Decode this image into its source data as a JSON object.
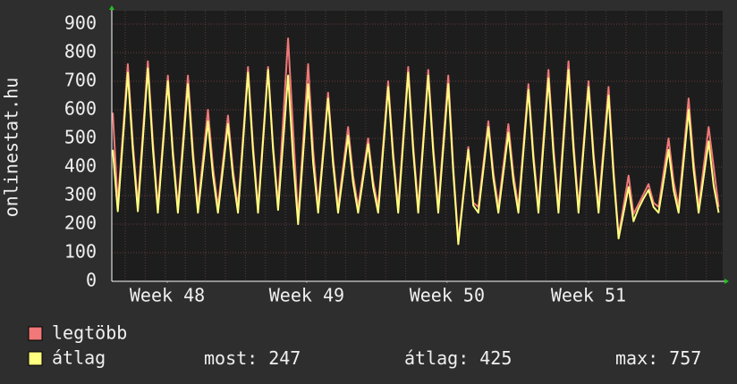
{
  "chart_data": {
    "type": "line",
    "ylabel": "onlinestat.hu",
    "xlim": [
      0,
      30.5
    ],
    "xticks": [
      {
        "value": 2.77,
        "label": "Week 48"
      },
      {
        "value": 9.73,
        "label": "Week 49"
      },
      {
        "value": 16.74,
        "label": "Week 50"
      },
      {
        "value": 23.8,
        "label": "Week 51"
      }
    ],
    "ylim": [
      0,
      900
    ],
    "yticks": [
      0,
      100,
      200,
      300,
      400,
      500,
      600,
      700,
      800,
      900
    ],
    "grid": true,
    "x": [
      0.05,
      0.3,
      0.55,
      0.8,
      1.05,
      1.3,
      1.55,
      1.8,
      2.05,
      2.3,
      2.55,
      2.8,
      3.05,
      3.3,
      3.55,
      3.8,
      4.05,
      4.3,
      4.55,
      4.8,
      5.05,
      5.3,
      5.55,
      5.8,
      6.05,
      6.3,
      6.55,
      6.8,
      7.05,
      7.3,
      7.55,
      7.8,
      8.05,
      8.3,
      8.55,
      8.8,
      9.05,
      9.3,
      9.55,
      9.8,
      10.05,
      10.3,
      10.55,
      10.8,
      11.05,
      11.3,
      11.55,
      11.8,
      12.05,
      12.3,
      12.55,
      12.8,
      13.05,
      13.3,
      13.55,
      13.8,
      14.05,
      14.3,
      14.55,
      14.8,
      15.05,
      15.3,
      15.55,
      15.8,
      16.05,
      16.3,
      16.55,
      16.8,
      17.05,
      17.3,
      17.55,
      17.8,
      18.05,
      18.3,
      18.55,
      18.8,
      19.05,
      19.3,
      19.55,
      19.8,
      20.05,
      20.3,
      20.55,
      20.8,
      21.05,
      21.3,
      21.55,
      21.8,
      22.05,
      22.3,
      22.55,
      22.8,
      23.05,
      23.3,
      23.55,
      23.8,
      24.05,
      24.3,
      24.55,
      24.8,
      25.05,
      25.3,
      25.55,
      25.8,
      26.05,
      26.3,
      26.55,
      26.8,
      27.05,
      27.3,
      27.55,
      27.8,
      28.05,
      28.3,
      28.55,
      28.8,
      29.05,
      29.3,
      29.55,
      29.8,
      30.05,
      30.3
    ],
    "series": [
      {
        "name": "legtöbb",
        "color": "#f07878",
        "values": [
          590,
          270,
          515,
          760,
          485,
          270,
          520,
          770,
          490,
          260,
          490,
          720,
          460,
          260,
          490,
          720,
          460,
          260,
          430,
          600,
          400,
          260,
          420,
          580,
          390,
          260,
          505,
          750,
          475,
          260,
          505,
          750,
          475,
          270,
          560,
          850,
          530,
          220,
          490,
          760,
          460,
          260,
          460,
          660,
          430,
          260,
          400,
          540,
          370,
          260,
          380,
          500,
          350,
          260,
          480,
          700,
          450,
          260,
          505,
          750,
          475,
          260,
          500,
          740,
          470,
          260,
          490,
          720,
          400,
          140,
          305,
          470,
          275,
          260,
          410,
          560,
          380,
          260,
          405,
          550,
          375,
          260,
          475,
          690,
          445,
          260,
          500,
          740,
          470,
          260,
          515,
          770,
          485,
          260,
          480,
          700,
          450,
          260,
          470,
          680,
          390,
          160,
          265,
          370,
          235,
          270,
          305,
          340,
          275,
          260,
          380,
          500,
          350,
          260,
          450,
          640,
          420,
          260,
          400,
          540,
          400,
          260
        ]
      },
      {
        "name": "átlag",
        "color": "#ffff80",
        "values": [
          460,
          245,
          490,
          730,
          460,
          245,
          495,
          745,
          465,
          240,
          470,
          700,
          440,
          240,
          465,
          690,
          435,
          240,
          400,
          560,
          370,
          240,
          395,
          550,
          365,
          240,
          485,
          730,
          455,
          240,
          490,
          740,
          460,
          250,
          485,
          720,
          430,
          200,
          445,
          690,
          415,
          240,
          440,
          640,
          410,
          240,
          375,
          510,
          345,
          240,
          360,
          480,
          330,
          240,
          460,
          680,
          430,
          240,
          485,
          730,
          455,
          240,
          480,
          720,
          450,
          240,
          465,
          690,
          380,
          130,
          295,
          460,
          265,
          240,
          390,
          540,
          360,
          240,
          380,
          520,
          350,
          240,
          455,
          670,
          425,
          240,
          475,
          710,
          445,
          240,
          490,
          740,
          460,
          240,
          460,
          680,
          430,
          240,
          445,
          650,
          370,
          150,
          240,
          330,
          210,
          255,
          290,
          320,
          260,
          240,
          350,
          460,
          320,
          240,
          420,
          600,
          390,
          240,
          365,
          490,
          335,
          240
        ]
      }
    ],
    "stats": [
      {
        "label": "most:",
        "value": 247
      },
      {
        "label": "átlag:",
        "value": 425
      },
      {
        "label": "max:",
        "value": 757
      }
    ]
  }
}
